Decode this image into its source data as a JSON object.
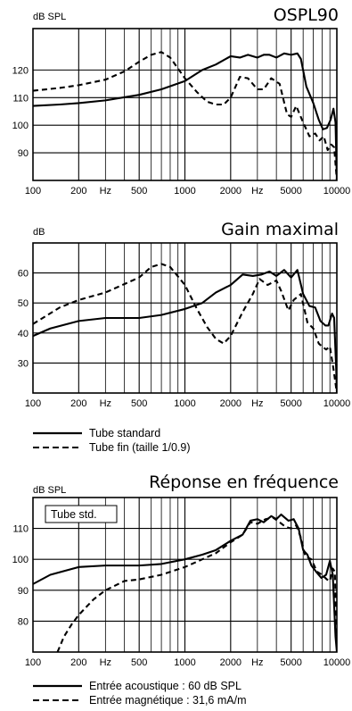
{
  "chart_data": [
    {
      "id": "ospl90",
      "type": "line",
      "title": "OSPL90",
      "ylabel": "dB SPL",
      "x_scale": "log",
      "xlim": [
        100,
        10000
      ],
      "ylim": [
        80,
        135
      ],
      "grid": true,
      "x_ticks": [
        {
          "v": 100,
          "label": "100"
        },
        {
          "v": 200,
          "label": "200"
        },
        {
          "v": 300,
          "label": "Hz"
        },
        {
          "v": 500,
          "label": "500"
        },
        {
          "v": 1000,
          "label": "1000"
        },
        {
          "v": 2000,
          "label": "2000"
        },
        {
          "v": 3000,
          "label": "Hz"
        },
        {
          "v": 5000,
          "label": "5000"
        },
        {
          "v": 10000,
          "label": "10000"
        }
      ],
      "y_ticks": [
        90,
        100,
        110,
        120
      ],
      "series": [
        {
          "name": "Tube standard",
          "style": "solid",
          "x": [
            100,
            150,
            200,
            300,
            500,
            700,
            1000,
            1300,
            1600,
            2000,
            2300,
            2600,
            3000,
            3300,
            3600,
            4000,
            4500,
            5000,
            5500,
            5800,
            6300,
            7000,
            7600,
            8100,
            8600,
            9100,
            9500,
            9800,
            10000
          ],
          "y": [
            107,
            107.5,
            108,
            109,
            111,
            113,
            116,
            120,
            122,
            125,
            124.5,
            125.5,
            124.5,
            125.5,
            125.5,
            124.5,
            126,
            125.5,
            126,
            124,
            114,
            108,
            102,
            98.5,
            99,
            102,
            106,
            101,
            80
          ]
        },
        {
          "name": "Tube fin (taille 1/0.9)",
          "style": "dashed",
          "x": [
            100,
            150,
            200,
            300,
            400,
            500,
            600,
            700,
            800,
            1000,
            1200,
            1400,
            1600,
            1800,
            2000,
            2300,
            2600,
            3000,
            3300,
            3700,
            4200,
            4700,
            5000,
            5400,
            6000,
            6600,
            7200,
            7700,
            8200,
            8700,
            9200,
            9600,
            10000
          ],
          "y": [
            112.5,
            113.5,
            114.5,
            116.5,
            119.5,
            123,
            125.5,
            126.5,
            124.5,
            117,
            112,
            108.5,
            107.5,
            107.5,
            110,
            117.5,
            117,
            113,
            113,
            117,
            115,
            104,
            103,
            107,
            101,
            96,
            97,
            94.5,
            96,
            91,
            93,
            92,
            80
          ]
        }
      ]
    },
    {
      "id": "gain",
      "type": "line",
      "title": "Gain maximal",
      "ylabel": "dB",
      "x_scale": "log",
      "xlim": [
        100,
        10000
      ],
      "ylim": [
        20,
        70
      ],
      "grid": true,
      "x_ticks": [
        {
          "v": 100,
          "label": "100"
        },
        {
          "v": 200,
          "label": "200"
        },
        {
          "v": 300,
          "label": "Hz"
        },
        {
          "v": 500,
          "label": "500"
        },
        {
          "v": 1000,
          "label": "1000"
        },
        {
          "v": 2000,
          "label": "2000"
        },
        {
          "v": 3000,
          "label": "Hz"
        },
        {
          "v": 5000,
          "label": "5000"
        },
        {
          "v": 10000,
          "label": "10000"
        }
      ],
      "y_ticks": [
        30,
        40,
        50,
        60
      ],
      "series": [
        {
          "name": "Tube standard",
          "style": "solid",
          "x": [
            100,
            130,
            200,
            300,
            500,
            700,
            1000,
            1300,
            1600,
            2000,
            2400,
            2800,
            3200,
            3600,
            4000,
            4500,
            5000,
            5500,
            6000,
            6600,
            7200,
            7800,
            8400,
            8800,
            9300,
            9600,
            9900,
            10000
          ],
          "y": [
            39,
            41.5,
            44,
            45,
            45,
            46,
            48,
            50,
            53.5,
            56,
            59.5,
            59,
            59.5,
            60.5,
            59,
            61,
            58.5,
            61,
            53,
            49,
            48.5,
            44,
            42.5,
            42.5,
            46.5,
            45,
            28,
            20
          ]
        },
        {
          "name": "Tube fin (taille 1/0.9)",
          "style": "dashed",
          "x": [
            100,
            150,
            200,
            300,
            500,
            600,
            700,
            800,
            1000,
            1200,
            1400,
            1600,
            1800,
            2000,
            2400,
            2800,
            3100,
            3500,
            4000,
            4300,
            4800,
            5200,
            5800,
            6400,
            7000,
            7600,
            8000,
            8500,
            9000,
            9500,
            10000
          ],
          "y": [
            43,
            48.5,
            51,
            53.5,
            58.5,
            62,
            63,
            62,
            56,
            48,
            42,
            38,
            36.5,
            39,
            47,
            53,
            58,
            56,
            57.5,
            54,
            47.5,
            51,
            53,
            43.5,
            41.5,
            36.5,
            35.5,
            34.5,
            35.5,
            28,
            20
          ]
        }
      ]
    },
    {
      "id": "freq",
      "type": "line",
      "title": "Réponse en fréquence",
      "ylabel": "dB SPL",
      "annotation": "Tube std.",
      "x_scale": "log",
      "xlim": [
        100,
        10000
      ],
      "ylim": [
        70,
        120
      ],
      "grid": true,
      "x_ticks": [
        {
          "v": 100,
          "label": "100"
        },
        {
          "v": 200,
          "label": "200"
        },
        {
          "v": 300,
          "label": "Hz"
        },
        {
          "v": 500,
          "label": "500"
        },
        {
          "v": 1000,
          "label": "1000"
        },
        {
          "v": 2000,
          "label": "2000"
        },
        {
          "v": 3000,
          "label": "Hz"
        },
        {
          "v": 5000,
          "label": "5000"
        },
        {
          "v": 10000,
          "label": "10000"
        }
      ],
      "y_ticks": [
        80,
        90,
        100,
        110
      ],
      "series": [
        {
          "name": "Entrée acoustique : 60 dB SPL",
          "style": "solid",
          "x": [
            100,
            130,
            200,
            300,
            500,
            700,
            1000,
            1300,
            1600,
            2000,
            2400,
            2700,
            3000,
            3300,
            3700,
            4000,
            4300,
            4800,
            5200,
            5600,
            6000,
            6400,
            6800,
            7300,
            7900,
            8500,
            9000,
            9400,
            9800,
            10000
          ],
          "y": [
            92,
            95,
            97.5,
            98,
            98,
            98.5,
            100,
            101.5,
            103,
            106,
            108,
            112.5,
            113,
            112,
            114,
            113,
            114.5,
            112.5,
            113,
            110,
            103,
            101.5,
            98,
            96,
            94,
            95,
            99.5,
            95,
            75,
            70
          ]
        },
        {
          "name": "Entrée magnétique : 31,6 mA/m",
          "style": "dashed",
          "x": [
            145,
            160,
            180,
            200,
            250,
            300,
            400,
            500,
            700,
            1000,
            1300,
            1600,
            2000,
            2400,
            2700,
            3000,
            3400,
            3800,
            4200,
            4600,
            5000,
            5400,
            5800,
            6200,
            6800,
            7400,
            8000,
            8600,
            9000,
            9400,
            9700,
            10000
          ],
          "y": [
            70,
            75,
            79,
            82,
            87,
            90,
            93,
            93.5,
            95,
            97.5,
            100,
            102,
            105.5,
            108,
            112,
            111.5,
            113,
            113.5,
            112,
            110.5,
            110,
            111,
            107,
            101,
            100,
            96,
            95,
            93.5,
            93,
            97,
            96,
            72
          ]
        }
      ]
    }
  ],
  "legends": [
    {
      "id": "legend-1",
      "items": [
        {
          "style": "solid",
          "label": "Tube standard"
        },
        {
          "style": "dashed",
          "label": "Tube fin (taille 1/0.9)"
        }
      ]
    },
    {
      "id": "legend-2",
      "items": [
        {
          "style": "solid",
          "label": "Entrée acoustique : 60 dB SPL"
        },
        {
          "style": "dashed",
          "label": "Entrée magnétique : 31,6 mA/m"
        }
      ]
    }
  ]
}
